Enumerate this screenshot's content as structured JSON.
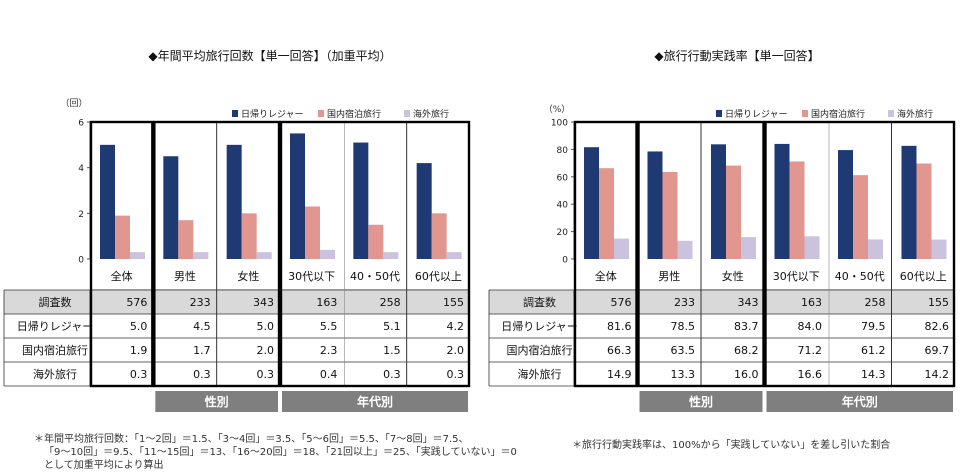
{
  "chart_data": [
    {
      "type": "bar",
      "title": "◆年間平均旅行回数【単一回答】（加重平均）",
      "unit": "（回）",
      "ylim": [
        0,
        6
      ],
      "yticks": [
        0,
        2,
        4,
        6
      ],
      "categories": [
        "全体",
        "男性",
        "女性",
        "30代以下",
        "40・50代",
        "60代以上"
      ],
      "series": [
        {
          "name": "日帰りレジャー",
          "values": [
            5.0,
            4.5,
            5.0,
            5.5,
            5.1,
            4.2
          ]
        },
        {
          "name": "国内宿泊旅行",
          "values": [
            1.9,
            1.7,
            2.0,
            2.3,
            1.5,
            2.0
          ]
        },
        {
          "name": "海外旅行",
          "values": [
            0.3,
            0.3,
            0.3,
            0.4,
            0.3,
            0.3
          ]
        }
      ],
      "table": {
        "rows": [
          {
            "label": "調査数",
            "cells": [
              "576",
              "233",
              "343",
              "163",
              "258",
              "155"
            ]
          },
          {
            "label": "日帰りレジャー",
            "cells": [
              "5.0",
              "4.5",
              "5.0",
              "5.5",
              "5.1",
              "4.2"
            ]
          },
          {
            "label": "国内宿泊旅行",
            "cells": [
              "1.9",
              "1.7",
              "2.0",
              "2.3",
              "1.5",
              "2.0"
            ]
          },
          {
            "label": "海外旅行",
            "cells": [
              "0.3",
              "0.3",
              "0.3",
              "0.4",
              "0.3",
              "0.3"
            ]
          }
        ]
      },
      "groups": [
        "性別",
        "年代別"
      ],
      "legend_position": "top-right",
      "grid": false
    },
    {
      "type": "bar",
      "title": "◆旅行行動実践率【単一回答】",
      "unit": "（%）",
      "ylim": [
        0,
        100
      ],
      "yticks": [
        0,
        20,
        40,
        60,
        80,
        100
      ],
      "categories": [
        "全体",
        "男性",
        "女性",
        "30代以下",
        "40・50代",
        "60代以上"
      ],
      "series": [
        {
          "name": "日帰りレジャー",
          "values": [
            81.6,
            78.5,
            83.7,
            84.0,
            79.5,
            82.6
          ]
        },
        {
          "name": "国内宿泊旅行",
          "values": [
            66.3,
            63.5,
            68.2,
            71.2,
            61.2,
            69.7
          ]
        },
        {
          "name": "海外旅行",
          "values": [
            14.9,
            13.3,
            16.0,
            16.6,
            14.3,
            14.2
          ]
        }
      ],
      "table": {
        "rows": [
          {
            "label": "調査数",
            "cells": [
              "576",
              "233",
              "343",
              "163",
              "258",
              "155"
            ]
          },
          {
            "label": "日帰りレジャー",
            "cells": [
              "81.6",
              "78.5",
              "83.7",
              "84.0",
              "79.5",
              "82.6"
            ]
          },
          {
            "label": "国内宿泊旅行",
            "cells": [
              "66.3",
              "63.5",
              "68.2",
              "71.2",
              "61.2",
              "69.7"
            ]
          },
          {
            "label": "海外旅行",
            "cells": [
              "14.9",
              "13.3",
              "16.0",
              "16.6",
              "14.3",
              "14.2"
            ]
          }
        ]
      },
      "groups": [
        "性別",
        "年代別"
      ],
      "legend_position": "top-right",
      "grid": false
    }
  ],
  "colors": {
    "daytrip": "#1f3a72",
    "domestic": "#e19790",
    "overseas": "#cbc3dd",
    "group_band": "#7f7f7f",
    "header_fill": "#d9d9d9"
  },
  "notes": {
    "left_line1": "＊年間平均旅行回数：「1～2回」＝1.5、「3～4回」＝3.5、「5～6回」＝5.5、「7～8回」＝7.5、",
    "left_line2": "「9～10回」＝9.5、「11～15回」＝13、「16～20回」＝18、「21回以上」＝25、「実践していない」＝0",
    "left_line3": "として加重平均により算出",
    "right": "＊旅行行動実践率は、100%から「実践していない」を差し引いた割合"
  }
}
